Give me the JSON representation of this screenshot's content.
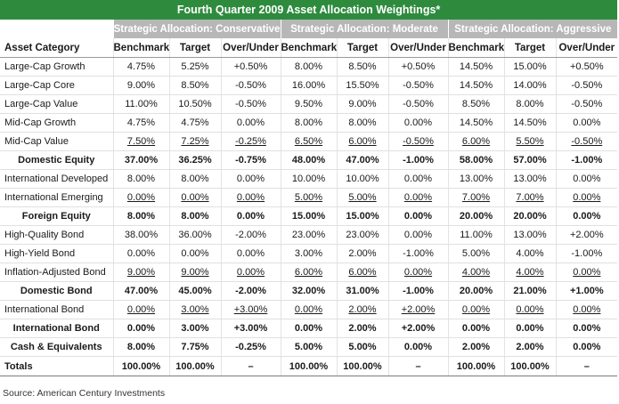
{
  "title": "Fourth Quarter 2009 Asset Allocation Weightings*",
  "groups": [
    "Strategic Allocation: Conservative",
    "Strategic Allocation: Moderate",
    "Strategic Allocation: Aggressive"
  ],
  "columns": [
    "Asset Category",
    "Benchmark",
    "Target",
    "Over/Under",
    "Benchmark",
    "Target",
    "Over/Under",
    "Benchmark",
    "Target",
    "Over/Under"
  ],
  "rows": [
    {
      "bold": false,
      "ul": false,
      "cells": [
        "Large-Cap Growth",
        "4.75%",
        "5.25%",
        "+0.50%",
        "8.00%",
        "8.50%",
        "+0.50%",
        "14.50%",
        "15.00%",
        "+0.50%"
      ]
    },
    {
      "bold": false,
      "ul": false,
      "cells": [
        "Large-Cap Core",
        "9.00%",
        "8.50%",
        "-0.50%",
        "16.00%",
        "15.50%",
        "-0.50%",
        "14.50%",
        "14.00%",
        "-0.50%"
      ]
    },
    {
      "bold": false,
      "ul": false,
      "cells": [
        "Large-Cap Value",
        "11.00%",
        "10.50%",
        "-0.50%",
        "9.50%",
        "9.00%",
        "-0.50%",
        "8.50%",
        "8.00%",
        "-0.50%"
      ]
    },
    {
      "bold": false,
      "ul": false,
      "cells": [
        "Mid-Cap Growth",
        "4.75%",
        "4.75%",
        "0.00%",
        "8.00%",
        "8.00%",
        "0.00%",
        "14.50%",
        "14.50%",
        "0.00%"
      ]
    },
    {
      "bold": false,
      "ul": true,
      "cells": [
        "Mid-Cap Value",
        "7.50%",
        "7.25%",
        "-0.25%",
        "6.50%",
        "6.00%",
        "-0.50%",
        "6.00%",
        "5.50%",
        "-0.50%"
      ]
    },
    {
      "bold": true,
      "ul": false,
      "cells": [
        "Domestic Equity",
        "37.00%",
        "36.25%",
        "-0.75%",
        "48.00%",
        "47.00%",
        "-1.00%",
        "58.00%",
        "57.00%",
        "-1.00%"
      ]
    },
    {
      "bold": false,
      "ul": false,
      "cells": [
        "International Developed",
        "8.00%",
        "8.00%",
        "0.00%",
        "10.00%",
        "10.00%",
        "0.00%",
        "13.00%",
        "13.00%",
        "0.00%"
      ]
    },
    {
      "bold": false,
      "ul": true,
      "cells": [
        "International Emerging",
        "0.00%",
        "0.00%",
        "0.00%",
        "5.00%",
        "5.00%",
        "0.00%",
        "7.00%",
        "7.00%",
        "0.00%"
      ]
    },
    {
      "bold": true,
      "ul": false,
      "cells": [
        "Foreign Equity",
        "8.00%",
        "8.00%",
        "0.00%",
        "15.00%",
        "15.00%",
        "0.00%",
        "20.00%",
        "20.00%",
        "0.00%"
      ]
    },
    {
      "bold": false,
      "ul": false,
      "cells": [
        "High-Quality Bond",
        "38.00%",
        "36.00%",
        "-2.00%",
        "23.00%",
        "23.00%",
        "0.00%",
        "11.00%",
        "13.00%",
        "+2.00%"
      ]
    },
    {
      "bold": false,
      "ul": false,
      "cells": [
        "High-Yield Bond",
        "0.00%",
        "0.00%",
        "0.00%",
        "3.00%",
        "2.00%",
        "-1.00%",
        "5.00%",
        "4.00%",
        "-1.00%"
      ]
    },
    {
      "bold": false,
      "ul": true,
      "cells": [
        "Inflation-Adjusted Bond",
        "9.00%",
        "9.00%",
        "0.00%",
        "6.00%",
        "6.00%",
        "0.00%",
        "4.00%",
        "4.00%",
        "0.00%"
      ]
    },
    {
      "bold": true,
      "ul": false,
      "cells": [
        "Domestic Bond",
        "47.00%",
        "45.00%",
        "-2.00%",
        "32.00%",
        "31.00%",
        "-1.00%",
        "20.00%",
        "21.00%",
        "+1.00%"
      ]
    },
    {
      "bold": false,
      "ul": true,
      "cells": [
        "International Bond",
        "0.00%",
        "3.00%",
        "+3.00%",
        "0.00%",
        "2.00%",
        "+2.00%",
        "0.00%",
        "0.00%",
        "0.00%"
      ]
    },
    {
      "bold": true,
      "ul": false,
      "cells": [
        "International Bond",
        "0.00%",
        "3.00%",
        "+3.00%",
        "0.00%",
        "2.00%",
        "+2.00%",
        "0.00%",
        "0.00%",
        "0.00%"
      ]
    },
    {
      "bold": true,
      "ul": false,
      "cells": [
        "Cash & Equivalents",
        "8.00%",
        "7.75%",
        "-0.25%",
        "5.00%",
        "5.00%",
        "0.00%",
        "2.00%",
        "2.00%",
        "0.00%"
      ]
    }
  ],
  "totals": [
    "Totals",
    "100.00%",
    "100.00%",
    "–",
    "100.00%",
    "100.00%",
    "–",
    "100.00%",
    "100.00%",
    "–"
  ],
  "source": "Source: American Century Investments"
}
